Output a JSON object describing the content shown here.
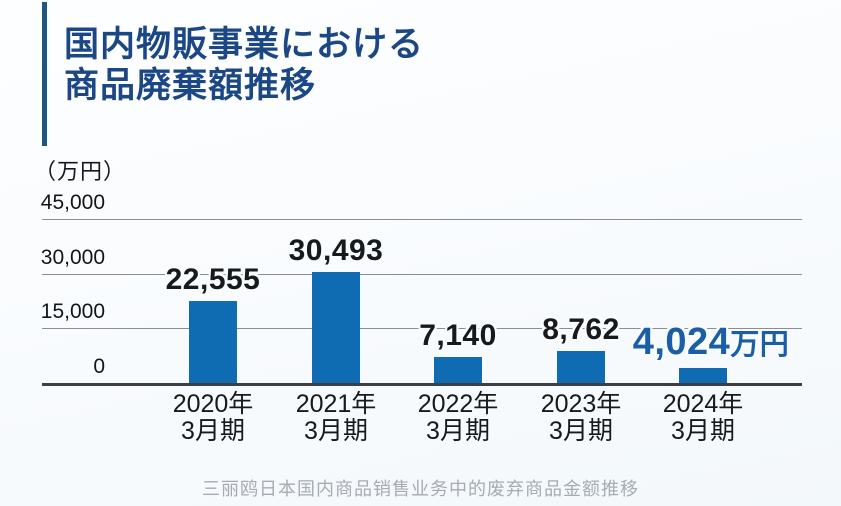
{
  "page": {
    "title_line1": "国内物販事業における",
    "title_line2": "商品廃棄額推移",
    "caption": "三丽鸥日本国内商品销售业务中的废弃商品金额推移"
  },
  "chart_data": {
    "type": "bar",
    "title": "国内物販事業における商品廃棄額推移",
    "unit_label": "（万円）",
    "categories": [
      [
        "2020年",
        "3月期"
      ],
      [
        "2021年",
        "3月期"
      ],
      [
        "2022年",
        "3月期"
      ],
      [
        "2023年",
        "3月期"
      ],
      [
        "2024年",
        "3月期"
      ]
    ],
    "values": [
      22555,
      30493,
      7140,
      8762,
      4024
    ],
    "value_labels": [
      "22,555",
      "30,493",
      "7,140",
      "8,762",
      "4,024"
    ],
    "highlight_index": 4,
    "highlight_suffix": "万円",
    "ylim": [
      0,
      45000
    ],
    "yticks": [
      0,
      15000,
      30000,
      45000
    ],
    "ytick_labels": [
      "0",
      "15,000",
      "30,000",
      "45,000"
    ],
    "grid": true,
    "legend": "none",
    "colors": {
      "bar": "#0f6bb2",
      "highlight_label": "#1a5ea8",
      "title": "#1b4784",
      "gridline": "#8a8e93",
      "baseline": "#3c4045"
    }
  }
}
